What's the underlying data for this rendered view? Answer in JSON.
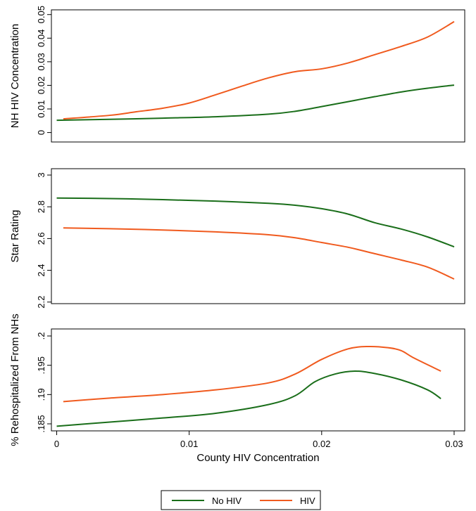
{
  "chart_data": [
    {
      "type": "line",
      "title": "",
      "xlabel": "",
      "ylabel": "NH HIV Concentration",
      "xlim": [
        -0.0004,
        0.0308
      ],
      "ylim": [
        -0.004,
        0.052
      ],
      "yticks": [
        0,
        0.01,
        0.02,
        0.03,
        0.04,
        0.05
      ],
      "ytick_labels": [
        "0",
        "0.01",
        "0.02",
        "0.03",
        "0.04",
        "0.05"
      ],
      "grid": false,
      "series": [
        {
          "name": "No HIV",
          "color": "#1a6e1a",
          "x": [
            0,
            0.004,
            0.008,
            0.012,
            0.016,
            0.018,
            0.02,
            0.022,
            0.024,
            0.026,
            0.028,
            0.03
          ],
          "y": [
            0.0052,
            0.0056,
            0.0061,
            0.0067,
            0.0078,
            0.009,
            0.011,
            0.0131,
            0.0152,
            0.0172,
            0.0188,
            0.0201
          ]
        },
        {
          "name": "HIV",
          "color": "#f05a1e",
          "x": [
            0.0005,
            0.004,
            0.006,
            0.008,
            0.01,
            0.012,
            0.014,
            0.016,
            0.018,
            0.02,
            0.022,
            0.024,
            0.026,
            0.028,
            0.03
          ],
          "y": [
            0.0058,
            0.0073,
            0.0088,
            0.0103,
            0.0125,
            0.016,
            0.0197,
            0.0232,
            0.0258,
            0.027,
            0.0295,
            0.033,
            0.0365,
            0.0405,
            0.047
          ]
        }
      ]
    },
    {
      "type": "line",
      "title": "",
      "xlabel": "",
      "ylabel": "Star Rating",
      "xlim": [
        -0.0004,
        0.0308
      ],
      "ylim": [
        2.19,
        3.04
      ],
      "yticks": [
        2.2,
        2.4,
        2.6,
        2.8,
        3
      ],
      "ytick_labels": [
        "2.2",
        "2.4",
        "2.6",
        "2.8",
        "3"
      ],
      "grid": false,
      "series": [
        {
          "name": "No HIV",
          "color": "#1a6e1a",
          "x": [
            0,
            0.004,
            0.008,
            0.012,
            0.016,
            0.018,
            0.02,
            0.022,
            0.024,
            0.026,
            0.028,
            0.03
          ],
          "y": [
            2.855,
            2.852,
            2.845,
            2.836,
            2.822,
            2.81,
            2.788,
            2.754,
            2.7,
            2.66,
            2.61,
            2.548
          ]
        },
        {
          "name": "HIV",
          "color": "#f05a1e",
          "x": [
            0.0005,
            0.004,
            0.008,
            0.012,
            0.016,
            0.018,
            0.02,
            0.022,
            0.024,
            0.026,
            0.028,
            0.03
          ],
          "y": [
            2.667,
            2.662,
            2.654,
            2.642,
            2.624,
            2.605,
            2.575,
            2.545,
            2.505,
            2.465,
            2.42,
            2.345
          ]
        }
      ]
    },
    {
      "type": "line",
      "title": "",
      "xlabel": "County HIV Concentration",
      "ylabel": "% Rehospitalized From NHs",
      "xlim": [
        -0.0004,
        0.0308
      ],
      "ylim": [
        0.1838,
        0.2012
      ],
      "xticks": [
        0,
        0.01,
        0.02,
        0.03
      ],
      "xtick_labels": [
        "0",
        "0.01",
        "0.02",
        "0.03"
      ],
      "yticks": [
        0.185,
        0.19,
        0.195,
        0.2
      ],
      "ytick_labels": [
        ".185",
        ".19",
        ".195",
        ".2"
      ],
      "grid": false,
      "series": [
        {
          "name": "No HIV",
          "color": "#1a6e1a",
          "x": [
            0,
            0.004,
            0.008,
            0.012,
            0.016,
            0.018,
            0.0195,
            0.021,
            0.0225,
            0.024,
            0.026,
            0.028,
            0.029
          ],
          "y": [
            0.1846,
            0.1853,
            0.186,
            0.1868,
            0.1883,
            0.1898,
            0.1922,
            0.1935,
            0.194,
            0.1936,
            0.1925,
            0.1908,
            0.1893
          ]
        },
        {
          "name": "HIV",
          "color": "#f05a1e",
          "x": [
            0.0005,
            0.004,
            0.008,
            0.012,
            0.016,
            0.018,
            0.02,
            0.022,
            0.0235,
            0.025,
            0.026,
            0.027,
            0.029
          ],
          "y": [
            0.1888,
            0.1894,
            0.19,
            0.1908,
            0.192,
            0.1935,
            0.196,
            0.1978,
            0.1982,
            0.198,
            0.1975,
            0.1962,
            0.194
          ]
        }
      ]
    }
  ],
  "legend": {
    "placement": "bottom",
    "items": [
      {
        "label": "No HIV",
        "color": "#1a6e1a"
      },
      {
        "label": "HIV",
        "color": "#f05a1e"
      }
    ]
  }
}
